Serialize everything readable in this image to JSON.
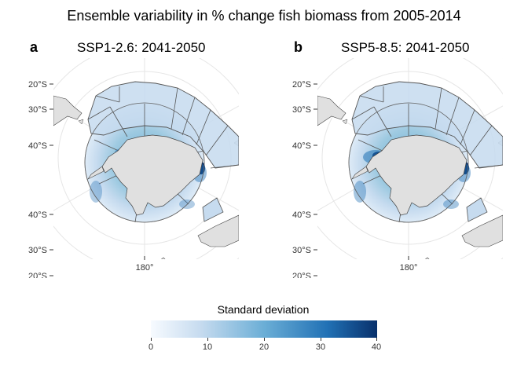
{
  "title": "Ensemble variability in % change fish biomass from 2005-2014",
  "panels": [
    {
      "letter": "a",
      "title": "SSP1-2.6: 2041-2050"
    },
    {
      "letter": "b",
      "title": "SSP5-8.5: 2041-2050"
    }
  ],
  "axis": {
    "lat_labels_top": [
      "20°S",
      "30°S",
      "40°S"
    ],
    "lat_labels_bottom": [
      "40°S",
      "30°S",
      "20°S"
    ],
    "lon_label": "180°"
  },
  "legend": {
    "title": "Standard deviation",
    "ticks": [
      "0",
      "10",
      "20",
      "30",
      "40"
    ],
    "range": [
      0,
      40
    ],
    "colors": [
      "#f7fbff",
      "#c6dbef",
      "#6baed6",
      "#2171b5",
      "#08306b"
    ]
  },
  "colors": {
    "land": "#e0e0e0",
    "grid": "#e6e6e6",
    "region_border": "#555555"
  }
}
